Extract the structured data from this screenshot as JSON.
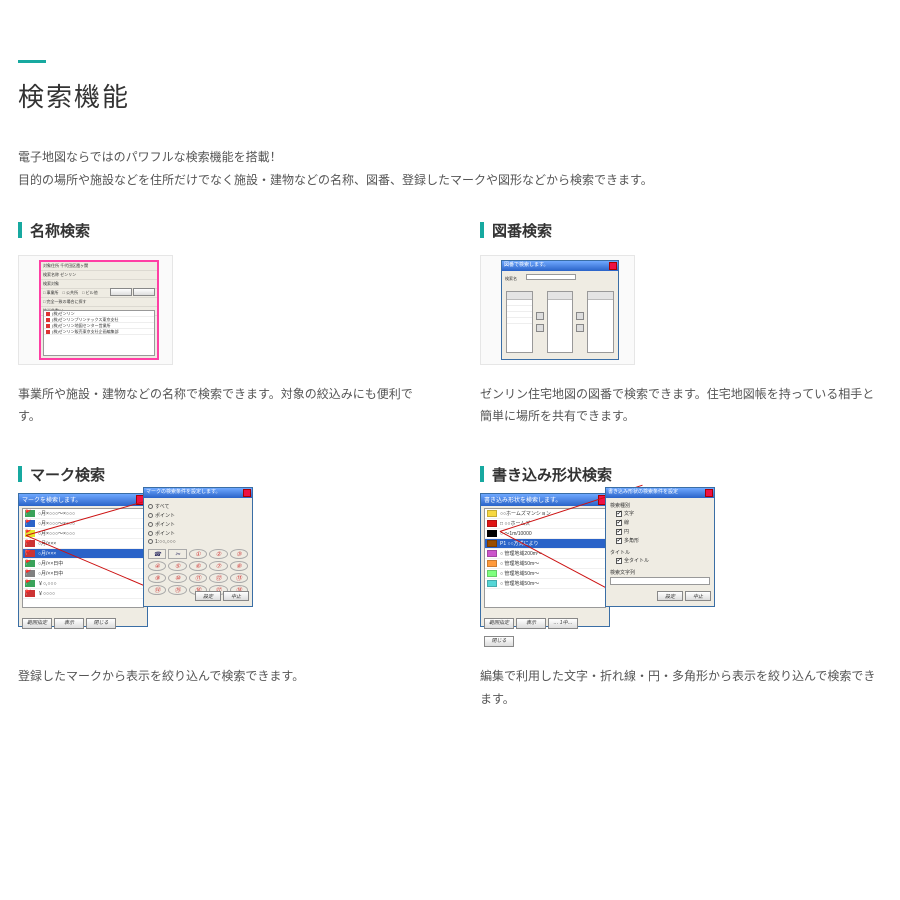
{
  "accent_color": "#17a9a0",
  "page_title": "検索機能",
  "lead_line1": "電子地図ならではのパワフルな検索機能を搭載！",
  "lead_line2": "目的の場所や施設などを住所だけでなく施設・建物などの名称、図番、登録したマークや図形などから検索できます。",
  "name_search": {
    "title": "名称検索",
    "desc": "事業所や施設・建物などの名称で検索できます。対象の絞込みにも便利です。",
    "dialog": {
      "rows": [
        "対象住所 千代田区霞ヶ関",
        "検索名称 ゼンリン",
        "検索対象",
        "□ 事業所　□ 公共所　□ ビル他",
        "□ 完全一致の場合に探す",
        "該当件数14"
      ],
      "list_items": [
        "(株)ゼンリン",
        "(株)ゼンリンプリンテックス東京支社",
        "(株)ゼンリン地図センター営業所",
        "(株)ゼンリン販売東京支社企画編集部"
      ]
    }
  },
  "zuban_search": {
    "title": "図番検索",
    "desc": "ゼンリン住宅地図の図番で検索できます。住宅地図帳を持っている相手と簡単に場所を共有できます。",
    "dialog": {
      "title_bar": "図番で検索します。",
      "field_label": "検索名",
      "field_value": "千代田区",
      "cols": [
        "対象図番",
        "番地",
        "番地"
      ]
    }
  },
  "mark_search": {
    "title": "マーク検索",
    "desc": "登録したマークから表示を絞り込んで検索できます。",
    "dialog_a": {
      "title_bar": "マークを検索します。",
      "list": [
        {
          "color": "#3aa35a",
          "label": "○月×○○○～×○○○"
        },
        {
          "color": "#2a63c8",
          "label": "○月×○○○～×○○○"
        },
        {
          "color": "#e6e62a",
          "label": "○月×○○○～×○○○"
        },
        {
          "color": "#cc3333",
          "label": "○月/×××"
        },
        {
          "color": "#cc3333",
          "label": "○月/×××",
          "selected": true
        },
        {
          "color": "#3aa35a",
          "label": "○月/××日中"
        },
        {
          "color": "#808080",
          "label": "○月/××日中"
        },
        {
          "color": "#3aa35a",
          "label": "￥○,○○○"
        },
        {
          "color": "#cc3333",
          "label": "￥○○○○"
        }
      ],
      "buttons": [
        "範囲指定",
        "表示",
        "閉じる"
      ]
    },
    "dialog_b": {
      "title_bar": "マークの検索条件を設定します。",
      "radios": [
        "すべて",
        "ポイント",
        "ポイント",
        "ポイント",
        "1:○○,○○○"
      ],
      "symbol_count": 20,
      "buttons": [
        "設定",
        "中止"
      ]
    },
    "caption": "条件設定画面"
  },
  "shape_search": {
    "title": "書き込み形状検索",
    "desc": "編集で利用した文字・折れ線・円・多角形から表示を絞り込んで検索できます。",
    "dialog_a": {
      "title_bar": "書き込み形状を検索します。",
      "list": [
        {
          "color": "#f7d840",
          "label": "○○ホームズマンション"
        },
        {
          "color": "#e01414",
          "label": "□ ○○ホームズ"
        },
        {
          "color": "#000000",
          "label": "○ ～1m/10000"
        },
        {
          "color": "#994d00",
          "label": "P1 ○○方式により",
          "selected": true
        },
        {
          "color": "#cc55cc",
          "label": "○ 管理地域200m～"
        },
        {
          "color": "#ff9a3c",
          "label": "○ 管理地域50m～"
        },
        {
          "color": "#7fff7f",
          "label": "○ 管理地域50m～"
        },
        {
          "color": "#55d6d6",
          "label": "○ 管理地域50m～"
        }
      ],
      "buttons": [
        "範囲指定",
        "表示",
        "… 1中…",
        "閉じる"
      ]
    },
    "dialog_b": {
      "title_bar": "書き込み形状の検索条件を設定",
      "group1_label": "検索種別",
      "checks": [
        "文字",
        "線",
        "円",
        "多角形"
      ],
      "group2_label": "タイトル",
      "check2": "全タイトル",
      "group3_label": "検索文字列",
      "buttons": [
        "設定",
        "中止"
      ]
    },
    "caption": "条件設定画面"
  }
}
